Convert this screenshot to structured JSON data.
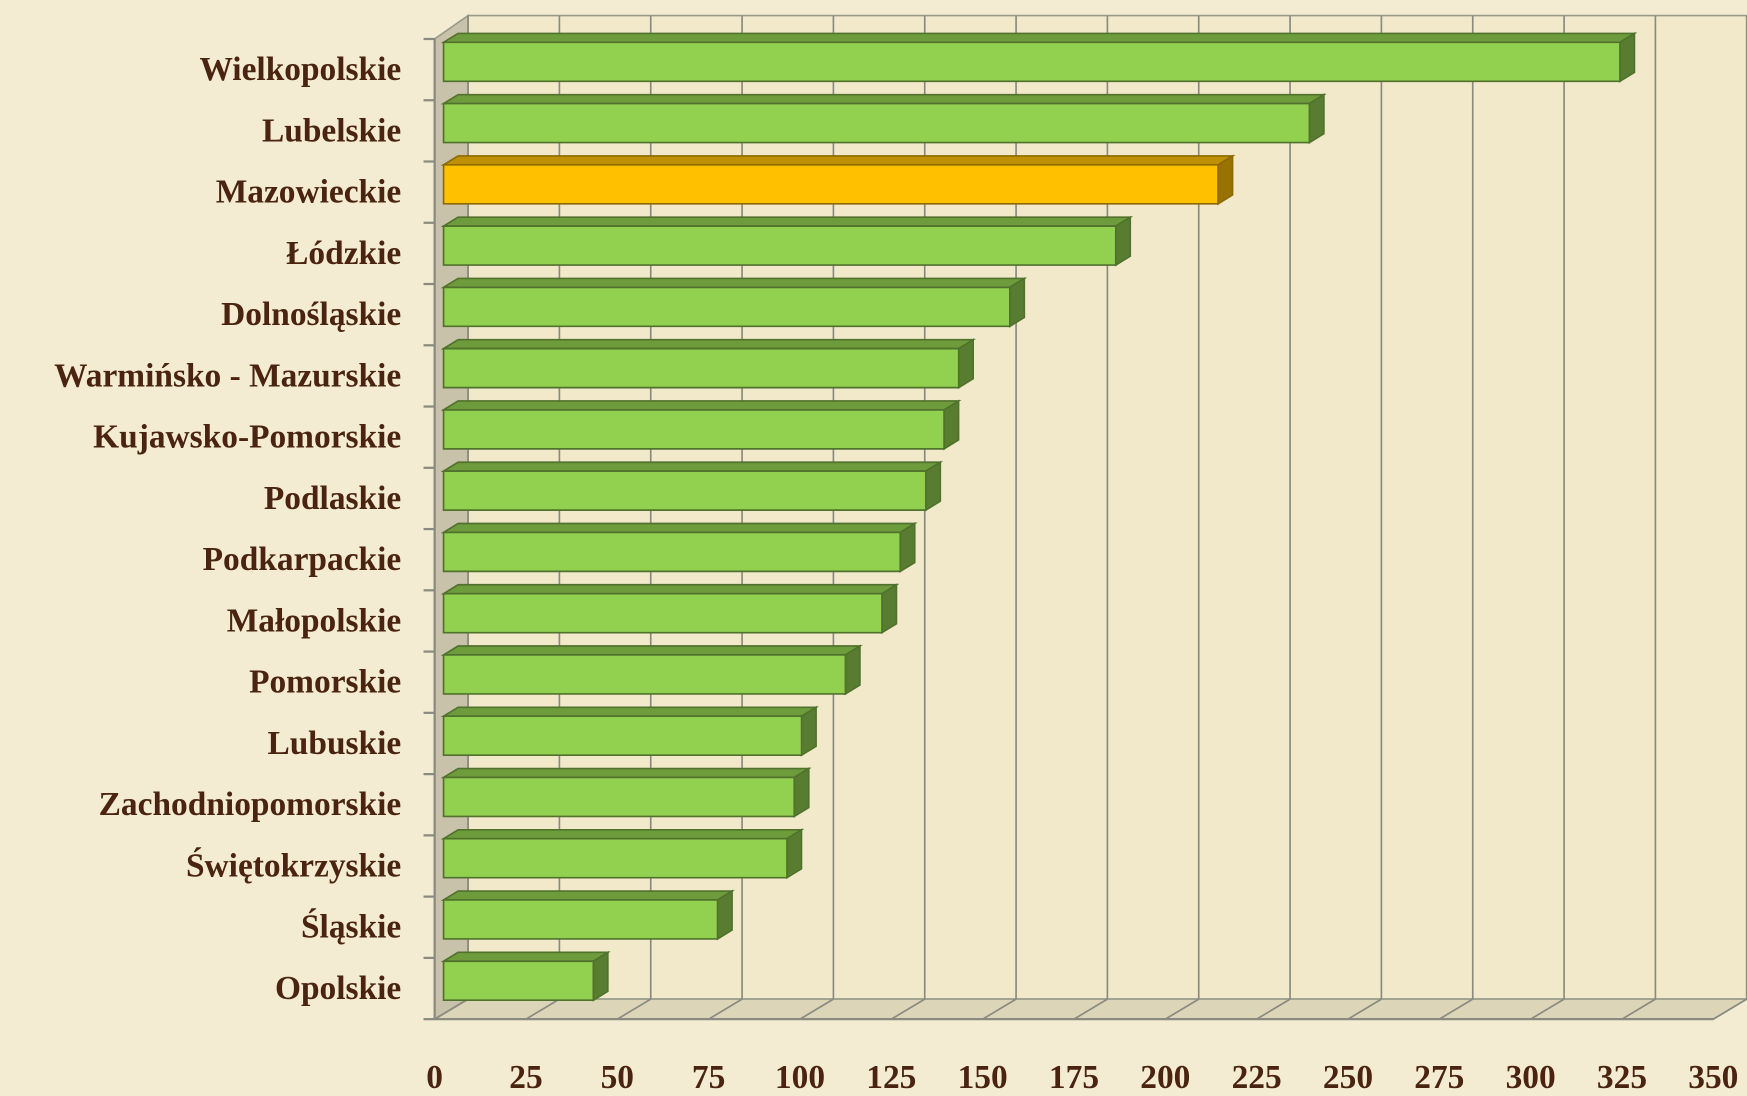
{
  "chart_data": {
    "type": "bar",
    "orientation": "horizontal",
    "categories": [
      "Wielkopolskie",
      "Lubelskie",
      "Mazowieckie",
      "Łódzkie",
      "Dolnośląskie",
      "Warmińsko - Mazurskie",
      "Kujawsko-Pomorskie",
      "Podlaskie",
      "Podkarpackie",
      "Małopolskie",
      "Pomorskie",
      "Lubuskie",
      "Zachodniopomorskie",
      "Świętokrzyskie",
      "Śląskie",
      "Opolskie"
    ],
    "values": [
      322,
      237,
      212,
      184,
      155,
      141,
      137,
      132,
      125,
      120,
      110,
      98,
      96,
      94,
      75,
      41
    ],
    "colors": [
      "#92d050",
      "#92d050",
      "#ffc000",
      "#92d050",
      "#92d050",
      "#92d050",
      "#92d050",
      "#92d050",
      "#92d050",
      "#92d050",
      "#92d050",
      "#92d050",
      "#92d050",
      "#92d050",
      "#92d050",
      "#92d050"
    ],
    "xlim": [
      0,
      350
    ],
    "xticks": [
      0,
      25,
      50,
      75,
      100,
      125,
      150,
      175,
      200,
      225,
      250,
      275,
      300,
      325,
      350
    ],
    "grid": true
  }
}
